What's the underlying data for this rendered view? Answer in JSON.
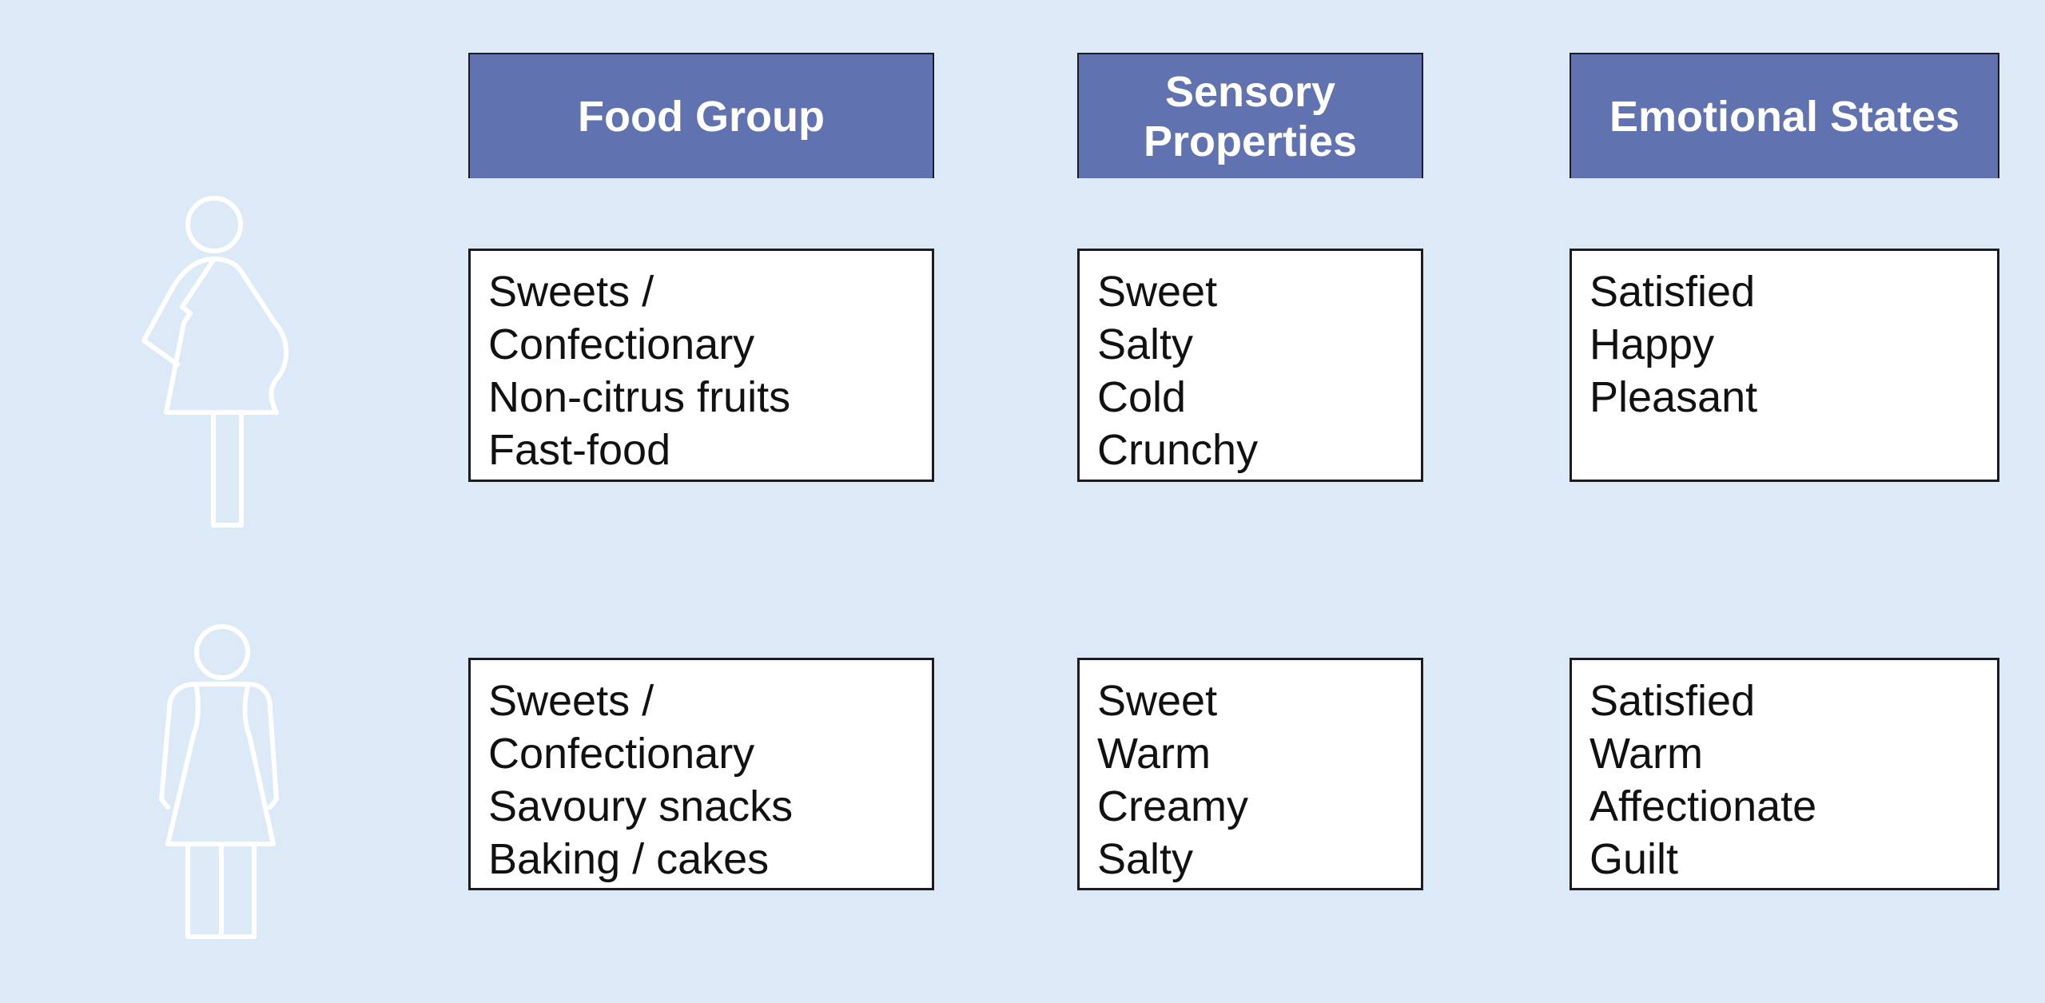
{
  "headers": [
    "Food Group",
    "Sensory Properties",
    "Emotional States"
  ],
  "rows": [
    {
      "figure": "pregnant-woman-icon",
      "food_group": [
        "Sweets /",
        "Confectionary",
        "Non-citrus fruits",
        "Fast-food"
      ],
      "sensory": [
        "Sweet",
        "Salty",
        "Cold",
        "Crunchy"
      ],
      "emotional": [
        "Satisfied",
        "Happy",
        "Pleasant"
      ]
    },
    {
      "figure": "woman-icon",
      "food_group": [
        "Sweets /",
        "Confectionary",
        "Savoury snacks",
        "Baking / cakes"
      ],
      "sensory": [
        "Sweet",
        "Warm",
        "Creamy",
        "Salty"
      ],
      "emotional": [
        "Satisfied",
        "Warm",
        "Affectionate",
        "Guilt"
      ]
    }
  ],
  "colors": {
    "background": "#dce9f7",
    "header_fill": "#6172b0",
    "icon_stroke": "#ffffff"
  }
}
